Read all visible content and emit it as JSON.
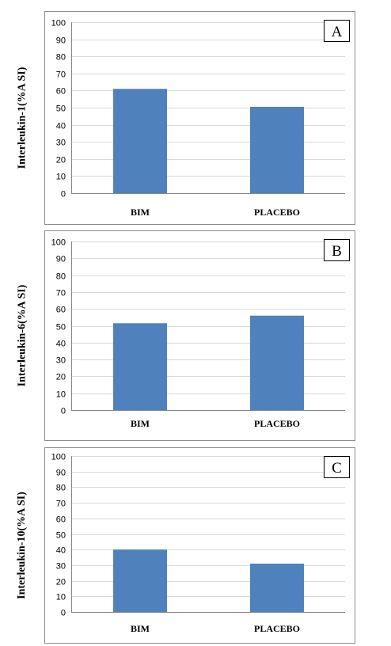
{
  "chart_data": [
    {
      "type": "bar",
      "panel_label": "A",
      "ylabel": "Interleukin-1(%A SI)",
      "categories": [
        "BIM",
        "PLACEBO"
      ],
      "values": [
        61,
        50.5
      ],
      "ylim": [
        0,
        100
      ],
      "yticks": [
        "0",
        "10",
        "20",
        "30",
        "40",
        "50",
        "60",
        "70",
        "80",
        "90",
        "100"
      ],
      "grid": true,
      "bar_color": "#4f81bd"
    },
    {
      "type": "bar",
      "panel_label": "B",
      "ylabel": "Interleukin-6(%A SI)",
      "categories": [
        "BIM",
        "PLACEBO"
      ],
      "values": [
        51.5,
        56
      ],
      "ylim": [
        0,
        100
      ],
      "yticks": [
        "0",
        "10",
        "20",
        "30",
        "40",
        "50",
        "60",
        "70",
        "80",
        "90",
        "100"
      ],
      "grid": true,
      "bar_color": "#4f81bd"
    },
    {
      "type": "bar",
      "panel_label": "C",
      "ylabel": "Interleukin-10(%A SI)",
      "categories": [
        "BIM",
        "PLACEBO"
      ],
      "values": [
        40,
        31
      ],
      "ylim": [
        0,
        100
      ],
      "yticks": [
        "0",
        "10",
        "20",
        "30",
        "40",
        "50",
        "60",
        "70",
        "80",
        "90",
        "100"
      ],
      "grid": true,
      "bar_color": "#4f81bd"
    }
  ]
}
